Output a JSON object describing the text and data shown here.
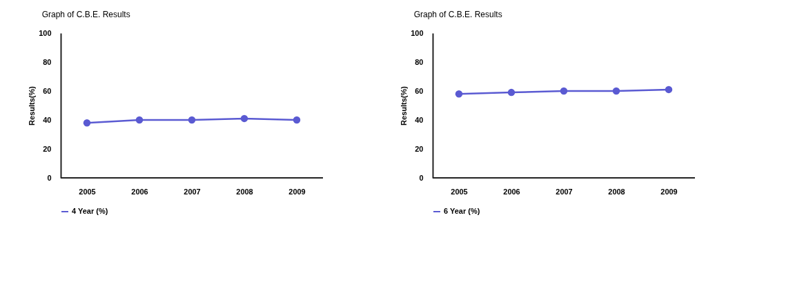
{
  "chart_data": [
    {
      "type": "line",
      "title": "Graph of C.B.E. Results",
      "ylabel": "Results(%)",
      "categories": [
        "2005",
        "2006",
        "2007",
        "2008",
        "2009"
      ],
      "series": [
        {
          "name": "4 Year (%)",
          "color": "#5a5ad2",
          "values": [
            38,
            40,
            40,
            41,
            40
          ]
        }
      ],
      "ylim": [
        0,
        100
      ],
      "yticks": [
        0,
        20,
        40,
        60,
        80,
        100
      ],
      "grid": false,
      "legend": "bottom",
      "marker": "circle",
      "line_style": "solid"
    },
    {
      "type": "line",
      "title": "Graph of C.B.E. Results",
      "ylabel": "Results(%)",
      "categories": [
        "2005",
        "2006",
        "2007",
        "2008",
        "2009"
      ],
      "series": [
        {
          "name": "6 Year (%)",
          "color": "#5a5ad2",
          "values": [
            58,
            59,
            60,
            60,
            61
          ]
        }
      ],
      "ylim": [
        0,
        100
      ],
      "yticks": [
        0,
        20,
        40,
        60,
        80,
        100
      ],
      "grid": false,
      "legend": "bottom",
      "marker": "circle",
      "line_style": "solid"
    }
  ]
}
